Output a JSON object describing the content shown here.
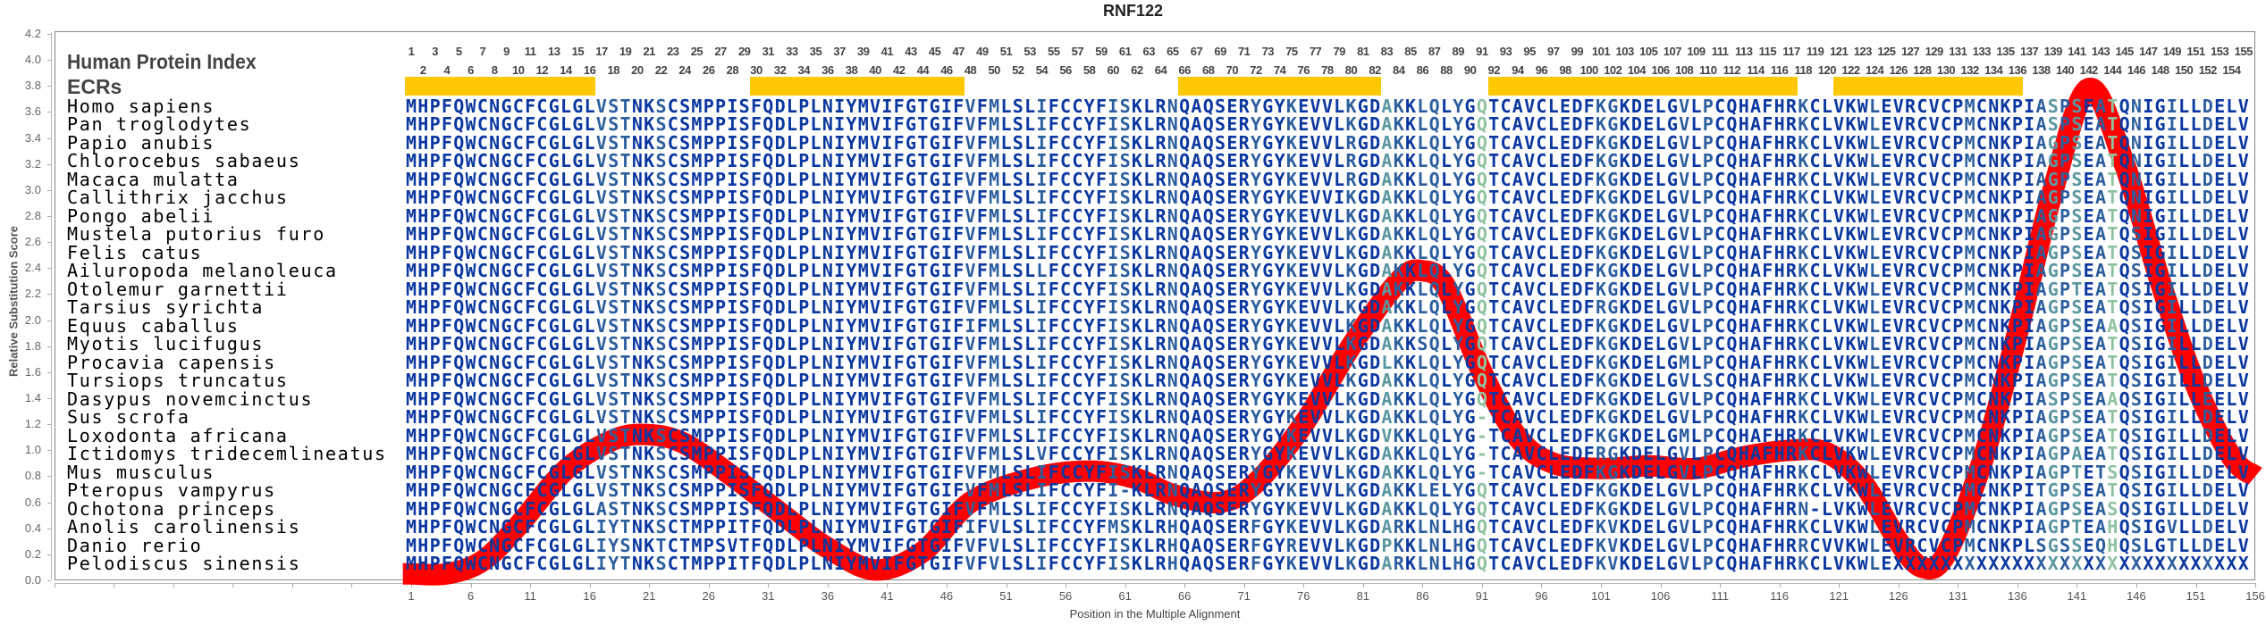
{
  "chart_data": {
    "type": "line",
    "title": "RNF122",
    "xlabel": "Position in the Multiple Alignment",
    "ylabel": "Relative Substitution Score",
    "xlim": [
      1,
      156
    ],
    "ylim": [
      0.0,
      4.2
    ],
    "y_ticks": [
      "0.0",
      "0.2",
      "0.4",
      "0.6",
      "0.8",
      "1.0",
      "1.2",
      "1.4",
      "1.6",
      "1.8",
      "2.0",
      "2.2",
      "2.4",
      "2.6",
      "2.8",
      "3.0",
      "3.2",
      "3.4",
      "3.6",
      "3.8",
      "4.0",
      "4.2"
    ],
    "x_ticks": [
      1,
      6,
      11,
      16,
      21,
      26,
      31,
      36,
      41,
      46,
      51,
      56,
      61,
      66,
      71,
      76,
      81,
      86,
      91,
      96,
      101,
      106,
      111,
      116,
      121,
      126,
      131,
      136,
      141,
      146,
      151,
      156
    ],
    "grid": false,
    "line_color": "#ff0000",
    "series": [
      {
        "x": [
          0.3,
          1,
          4,
          7,
          10,
          14,
          18,
          21,
          24,
          28,
          33,
          36,
          40,
          44,
          48,
          53,
          58,
          62,
          65,
          69,
          72,
          76,
          80,
          84,
          86,
          88,
          91,
          94,
          97,
          101,
          105,
          109,
          113,
          117,
          120,
          123,
          126,
          128,
          130,
          133,
          136,
          139,
          142,
          145,
          148,
          151,
          154,
          156
        ],
        "y": [
          0.05,
          0.05,
          0.05,
          0.15,
          0.42,
          0.85,
          1.08,
          1.12,
          1.05,
          0.8,
          0.45,
          0.25,
          0.08,
          0.22,
          0.6,
          0.78,
          0.84,
          0.78,
          0.66,
          0.6,
          0.75,
          1.2,
          1.8,
          2.3,
          2.38,
          2.25,
          1.6,
          1.1,
          0.9,
          0.86,
          0.88,
          0.86,
          0.95,
          1.0,
          0.98,
          0.75,
          0.3,
          0.1,
          0.2,
          0.9,
          1.9,
          3.0,
          3.78,
          3.2,
          2.3,
          1.5,
          0.95,
          0.8
        ]
      }
    ]
  },
  "header": {
    "human_protein_index_label": "Human Protein Index",
    "ecrs_label": "ECRs",
    "human_index_max": 155,
    "ecr_color": "#ffc800",
    "ecrs": [
      [
        1,
        16
      ],
      [
        30,
        47
      ],
      [
        66,
        82
      ],
      [
        92,
        117
      ],
      [
        121,
        136
      ]
    ]
  },
  "residue_colors": {
    "default": "#0a37a0",
    "mid": "#2c5e9e",
    "teal": "#5b97a0",
    "green": "#8fc3a0",
    "mid_columns": [
      17,
      18,
      19,
      22,
      48,
      50,
      54,
      60,
      61,
      65,
      72,
      75,
      80,
      84,
      86,
      87,
      89,
      101,
      102,
      108,
      110,
      118,
      124,
      132,
      138,
      140,
      143,
      146,
      149,
      152
    ],
    "teal_columns": [
      83,
      139,
      141
    ],
    "green_columns": [
      91,
      144
    ]
  },
  "alignment": [
    {
      "species": "Homo sapiens",
      "seq": "MHPFQWCNGCFCGLGLVSTNKSCSMPPISFQDLPLNIYMVIFGTGIFVFMLSLIFCCYFISKLRNQAQSERYGYKEVVLKGDAKKLQLYGQTCAVCLEDFKGKDELGVLPCQHAFHRKCLVKWLEVRCVCPMCNKPIASPSEATQNIGILLDELV"
    },
    {
      "species": "Pan troglodytes",
      "seq": "MHPFQWCNGCFCGLGLVSTNKSCSMPPISFQDLPLNIYMVIFGTGIFVFMLSLIFCCYFISKLRNQAQSERYGYKEVVLKGDAKKLQLYGQTCAVCLEDFKGKDELGVLPCQHAFHRKCLVKWLEVRCVCPMCNKPIASPSEATQNIGILLDELV"
    },
    {
      "species": "Papio anubis",
      "seq": "MHPFQWCNGCFCGLGLVSTNKSCSMPPISFQDLPLNIYMVIFGTGIFVFMLSLIFCCYFISKLRNQAQSERYGYKEVVLRGDAKKLQLYGQTCAVCLEDFKGKDELGVLPCQHAFHRKCLVKWLEVRCVCPMCNKPIAGPSEATQNIGILLDELV"
    },
    {
      "species": "Chlorocebus sabaeus",
      "seq": "MHPFQWCNGCFCGLGLVSTNKSCSMPPISFQDLPLNIYMVIFGTGIFVFMLSLIFCCYFISKLRNQAQSERYGYKEVVLRGDAKKLQLYGQTCAVCLEDFKGKDELGVLPCQHAFHRKCLVKWLEVRCVCPMCNKPIAGPSEATQNIGILLDELV"
    },
    {
      "species": "Macaca mulatta",
      "seq": "MHPFQWCNGCFCGLGLVSTNKSCSMPPISFQDLPLNIYMVIFGTGIFVFMLSLIFCCYFISKLRNQAQSERYGYKEVVLRGDAKKLQLYGQTCAVCLEDFKGKDELGVLPCQHAFHRKCLVKWLEVRCVCPMCNKPIAGPSEATQNIGILLDELV"
    },
    {
      "species": "Callithrix jacchus",
      "seq": "MHPFQWCNGCFCGLGLVSTNKSCSMPPISFQDLPLNIYMVIFGTGIFVFMLSLIFCCYFISKLRNQAQSERYGYKEVVIKGDAKKLQLYGQTCAVCLEDFKGKDELGVLPCQHAFHRKCLVKWLEVRCVCPMCNKPIAGPSEATQNIGILLDELV"
    },
    {
      "species": "Pongo abelii",
      "seq": "MHPFQWCNGCFCGLGLVSTNKSCSMPPISFQDLPLNIYMVIFGTGIFVFMLSLIFCCYFISKLRNQAQSERYGYKEVVLKGDAKKLQLYGQTCAVCLEDFKGKDELGVLPCQHAFHRKCLVKWLEVRCVCPMCNKPIAGPSEATQNIGILLDELV"
    },
    {
      "species": "Mustela putorius furo",
      "seq": "MHPFQWCNGCFCGLGLVSTNKSCSMPPISFQDLPLNIYMVIFGTGIFVFMLSLIFCCYFISKLRNQAQSERYGYKEVVLKGDAKKLQLYGQTCAVCLEDFKGKDELGVLPCQHAFHRKCLVKWLEVRCVCPMCNKPIAGPSEATQSIGILLDELV"
    },
    {
      "species": "Felis catus",
      "seq": "MHPFQWCNGCFCGLGLVSTNKSCSMPPISFQDLPLNIYMVIFGTGIFVFMLSLIFCCYFISKLRNQAQSERYGYKEVVLKGDAKKLQLYGQTCAVCLEDFKGKDELGVLPCQHAFHRKCLVKWLEVRCVCPMCNKPIAGPSEATQSIGILLDELV"
    },
    {
      "species": "Ailuropoda melanoleuca",
      "seq": "MHPFQWCNGCFCGLGLVSTNKSCSMPPISFQDLPLNIYMVIFGTGIFVFMLSLLFCCYFISKLRNQAQSERYGYKEVVLKGDAKKLQLYGQTCAVCLEDFKGKDELGVLPCQHAFHRKCLVKWLEVRCVCPMCNKPIAGPSEATQSIGILLDELV"
    },
    {
      "species": "Otolemur garnettii",
      "seq": "MHPFQWCNGCFCGLGLVSTNKSCSMPPISFQDLPLNIYMVIFGTGIFVFMLSLIFCCYFISKLRNQAQSERYGYKEVVLKGDAKKLQLYGQTCAVCLEDFKGKDELGVLPCQHAFHRKCLVKWLEVRCVCPMCNKPIAGPTEATQSIGILLDELV"
    },
    {
      "species": "Tarsius syrichta",
      "seq": "MHPFQWCNGCFCGLGLVSTNKSCSMPPISFQDLPLNIYMVIFGTGIFVFMLSLIFCCYFISKLRNQAQSERYGYKEVVLKGDAKKLQLYGQTCAVCLEDFRGKDELGVLPCQHAFHRKCLVKWLEVRCVCPMCNKPIAGPSEATQSIGILLDELV"
    },
    {
      "species": "Equus caballus",
      "seq": "MHPFQWCNGCFCGLGLVSTNKSCSMPPISFQDLPLNIYMVIFGTGIFIFMLSLIFCCYFISKLRNQAQSERYGYKEVVLKGDAKKLQLYGQTCAVCLEDFKGKDELGVLPCQHAFHRKCLVKWLEVRCVCPMCNKPIAGPSEAAQSIGILLDELV"
    },
    {
      "species": "Myotis lucifugus",
      "seq": "MHPFQWCNGCFCGLGLVSTNKSCSMPPISFQDLPLNIYMVIFGTGIFVFMLSLIFCCYFISKLRNQAQSERYGYKEVVLKGDAKKSQLYGQTCAVCLEDFKGKDELGVLPCQHAFHRKCLVKWLEVRCVCPMCNKPIAGPSEATQSIGILLDELV"
    },
    {
      "species": "Procavia capensis",
      "seq": "MHPFQWCNGCFCGLGLVSTNKSCSMPPISFQDLPLNIYMVIFGTGIFVFMLSLIFCCYFISKLRNQAQSERYGYKEVVLKGDLKKLQLYGQTCAVCLEDFKGKDELGMLPCQHAFHRKCLVKWLEVRCVCPMCNKPIAGPSEATQSIGILLDELV"
    },
    {
      "species": "Tursiops truncatus",
      "seq": "MHPFQWCNGCFCGLGLVSTNKSCSMPPISFQDLPLNIYMVIFGTGIFVFMLSLIFCCYFISKLRNQAQSERYGYKEVVLKGDAKKLQLYGQTCAVCLEDFKGKDELGVLSCQHAFHRKCLVKWLEVRCVCPMCNKPIAGPSEATQSIGILLDELV"
    },
    {
      "species": "Dasypus novemcinctus",
      "seq": "MHPFQWCNGCFCGLGLVSTNKSCSMPPISFQDLPLNIYMVIFGTGIFVFMLSLIFCCYFISKLRNQAQSERYGYKEVVLKGDAKKLQLYGQTCAVCLEDFKGKDELGVLPCQHAFHRKCLVKWLEVRCVCPMCNKPIASPSEAAQSIGILLEELV"
    },
    {
      "species": "Sus scrofa",
      "seq": "MHPFQWCNGCFCGLGLVSTNKSCSMPPISFQDLPLNIYMVIFGTGIFVFMLSLIFCCYFISKLRNQAQSERYGYKEVVLKGDAKKLQLYG-TCAVCLEDFKGKDELGVLPCQHAFHRKCLVKWLEVRCVCPMCNKPIAGPSEATQSIGILLDELV"
    },
    {
      "species": "Loxodonta africana",
      "seq": "MHPFQWCNGCFCGLGLVSTNKSCSMPPISFQDLPLNIYMVIFGTGIFVFMLSLIFCCYFISKLRNQAQSERYGYKEVVLKGDVKKLQLYG-TCAVCLEDFKGKDELGMLPCQHAFHRKCLVKWLEVRCVCPMCNKPIAGPSEATQSIGILLDELV"
    },
    {
      "species": "Ictidomys tridecemlineatus",
      "seq": "MHPFQWCNGCFCGLGLVSTNKSCSMPPISFQDLPLNIYMVIFGTGIFVFMLSLVFCCYFISKLRNQAQSERYGYKEVVLKGDAKKLQLYG-TCAVCLEDFRGKDELGVLPCQHAFHRKCLVKWLEVRCVCPMCNKPIAGPAEATQSIGILLDELV"
    },
    {
      "species": "Mus musculus",
      "seq": "MHPFQWCNGCFCGLGLVSTNKSCSMPPISFQDLPLNIYMVIFGTGIFVFMLSLIFCCYFISKLRNQAQSERYGYKEVVLKGDAKKLQLYG-TCAVCLEDFKGKDELGVLPCQHAFHRKCLVKWLEVRCVCPMCNKPIAGPTETSQSIGILLDELV"
    },
    {
      "species": "Pteropus vampyrus",
      "seq": "MHPFQWCNGCFCGLGLVSTNKSCSMPPISFQDLPLNIYMVIFGTGIFVFMLSLIFCCYFI-KLRNQAQSERYGYKEVVLKGDAKKLELYGQTCAVCLEDFKGKDELGVLPCQHAFHRKCLVKWLEVRCVCPMCNKPITGPSEATQSIGILLDELV"
    },
    {
      "species": "Ochotona princeps",
      "seq": "MHPFQWCNGCFCGLGLASTNKSCSMPPISFQDLPLNIYMVIFGTGIFVFMLSLIFCCYFISKLRNQAQSERYGYKEVVLKGDAKKLQLYGQTCAVCLEDFKGKDELGVLPCQHAFHRN-LVKWLEVRCVCPMCNKPIAGPSEASQSIGILLDELV"
    },
    {
      "species": "Anolis carolinensis",
      "seq": "MHPFQWCNGCFCGLGLIYTNKSCTMPPITFQDLPLNIYMVIFGTGIFIFVLSLIFCCYFMSKLRHQAQSERFGYKEVVLKGDARKLNLHGQTCAVCLEDFKVKDELGVLPCQHAFHRKCLVKWLEVRCVCPMCNKPIAGPTEAHQSIGVLLDELV"
    },
    {
      "species": "Danio rerio",
      "seq": "MHPFQWCNGCFCGLGLIYSNKTCTMPSVTFQDLPLNIYMVIFGTGIFVFVLSLIFCCYFISKLRHQAQSERFGYREVVLKGDPKKLNLHGQTCAVCLEDFKVKDELGVLPCQHAFHRRCVVKWLEVRCVCPMCNKPLSGSSEQHQSLGTLLDELV"
    },
    {
      "species": "Pelodiscus sinensis",
      "seq": "MHPFQWCNGCFCGLGLIYTNKSCTMPPITFQDLPLNIYMVIFGTGIFVFVLSLIFCCYFISKLRHQAQSERFGYKEVVLKGDARKLNLHGQTCAVCLEDFKVKDELGVLPCQHAFHRKCLVKWLEXXXXXXXXXXXXXXXXXXXXXXXXXXXXXX"
    }
  ]
}
